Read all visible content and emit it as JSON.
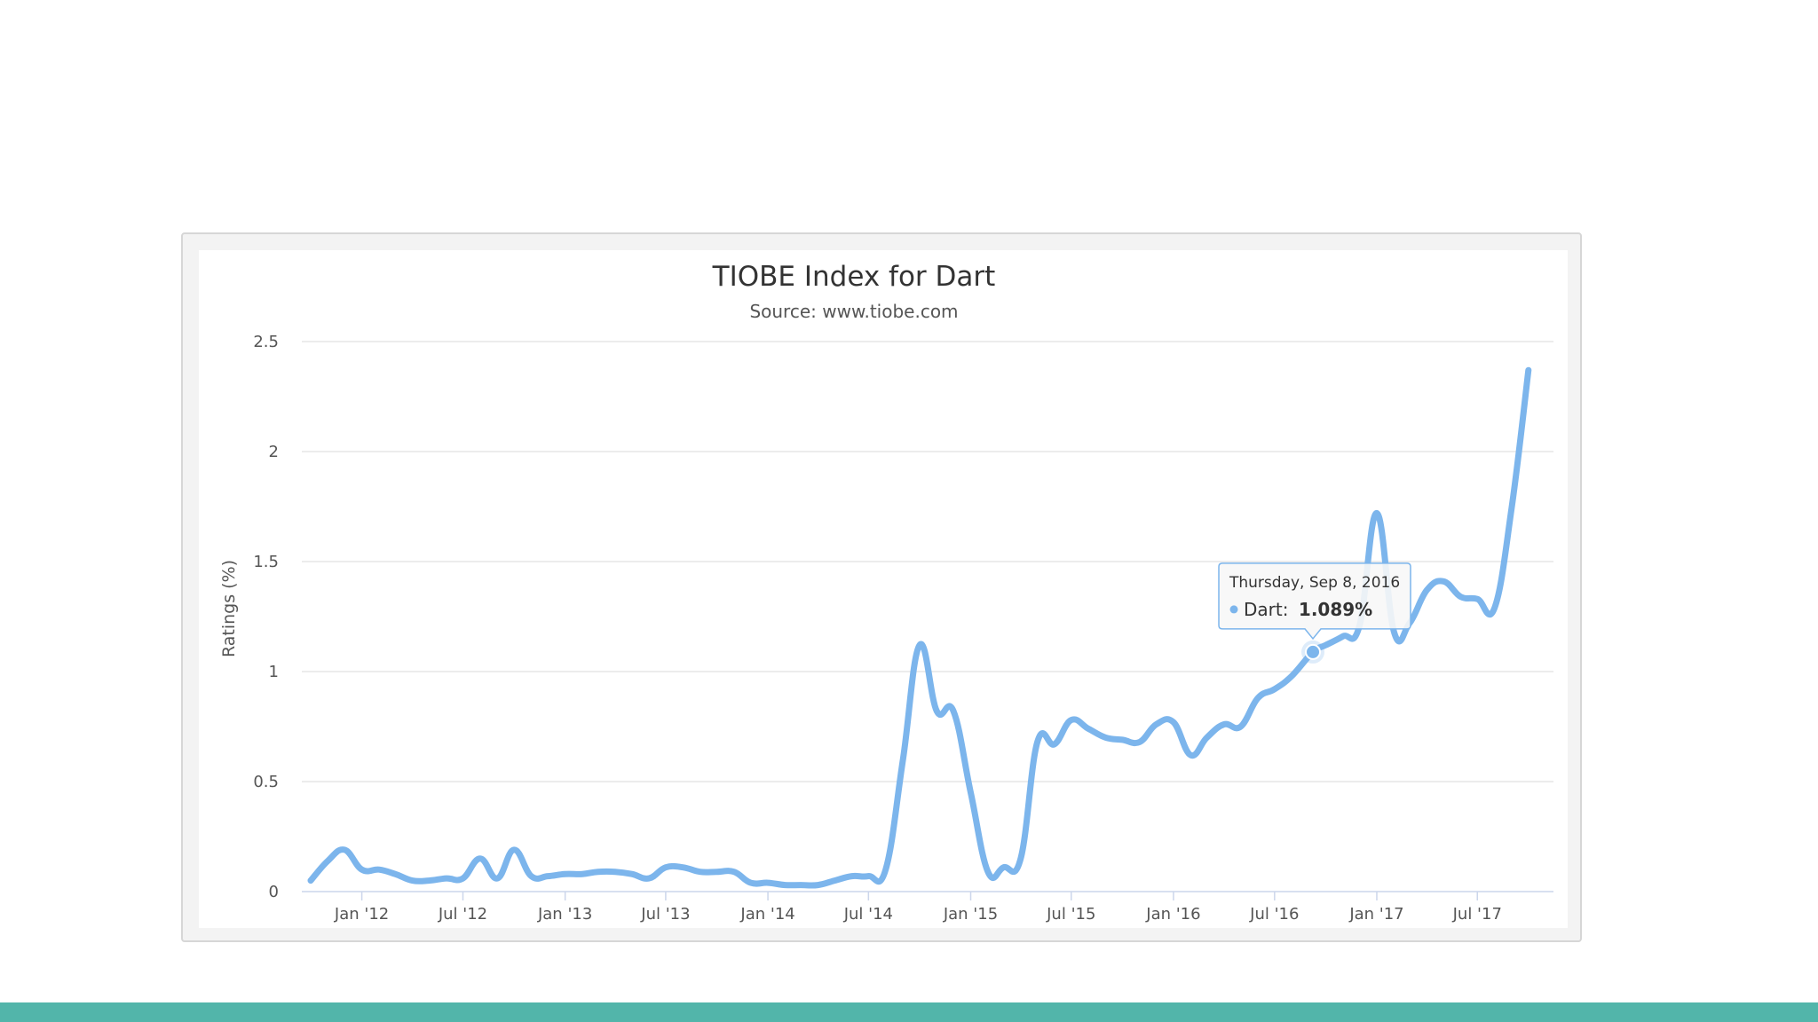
{
  "colors": {
    "series": "#7cb5ec",
    "bottom_bar": "#52b5aa",
    "gridline": "#e6e6e6",
    "axis_line": "#ccd6eb"
  },
  "chart_data": {
    "type": "line",
    "title": "TIOBE Index for Dart",
    "subtitle": "Source: www.tiobe.com",
    "ylabel": "Ratings (%)",
    "xlabel": "",
    "ylim": [
      0,
      2.5
    ],
    "yticks": [
      0,
      0.5,
      1,
      1.5,
      2,
      2.5
    ],
    "ytick_labels": [
      "0",
      "0.5",
      "1",
      "1.5",
      "2",
      "2.5"
    ],
    "xlim": [
      "2011-09-15",
      "2017-11-15"
    ],
    "xticks": [
      {
        "date": "2012-01-01",
        "label": "Jan '12"
      },
      {
        "date": "2012-07-01",
        "label": "Jul '12"
      },
      {
        "date": "2013-01-01",
        "label": "Jan '13"
      },
      {
        "date": "2013-07-01",
        "label": "Jul '13"
      },
      {
        "date": "2014-01-01",
        "label": "Jan '14"
      },
      {
        "date": "2014-07-01",
        "label": "Jul '14"
      },
      {
        "date": "2015-01-01",
        "label": "Jan '15"
      },
      {
        "date": "2015-07-01",
        "label": "Jul '15"
      },
      {
        "date": "2016-01-01",
        "label": "Jan '16"
      },
      {
        "date": "2016-07-01",
        "label": "Jul '16"
      },
      {
        "date": "2017-01-01",
        "label": "Jan '17"
      },
      {
        "date": "2017-07-01",
        "label": "Jul '17"
      }
    ],
    "grid": true,
    "legend": "none",
    "series": [
      {
        "name": "Dart",
        "points": [
          [
            "2011-10-01",
            0.05
          ],
          [
            "2011-11-01",
            0.14
          ],
          [
            "2011-12-01",
            0.19
          ],
          [
            "2012-01-01",
            0.1
          ],
          [
            "2012-02-01",
            0.1
          ],
          [
            "2012-03-01",
            0.08
          ],
          [
            "2012-04-01",
            0.05
          ],
          [
            "2012-05-01",
            0.05
          ],
          [
            "2012-06-01",
            0.06
          ],
          [
            "2012-07-01",
            0.06
          ],
          [
            "2012-08-01",
            0.15
          ],
          [
            "2012-09-01",
            0.06
          ],
          [
            "2012-10-01",
            0.19
          ],
          [
            "2012-11-01",
            0.07
          ],
          [
            "2012-12-01",
            0.07
          ],
          [
            "2013-01-01",
            0.08
          ],
          [
            "2013-02-01",
            0.08
          ],
          [
            "2013-03-01",
            0.09
          ],
          [
            "2013-04-01",
            0.09
          ],
          [
            "2013-05-01",
            0.08
          ],
          [
            "2013-06-01",
            0.06
          ],
          [
            "2013-07-01",
            0.11
          ],
          [
            "2013-08-01",
            0.11
          ],
          [
            "2013-09-01",
            0.09
          ],
          [
            "2013-10-01",
            0.09
          ],
          [
            "2013-11-01",
            0.09
          ],
          [
            "2013-12-01",
            0.04
          ],
          [
            "2014-01-01",
            0.04
          ],
          [
            "2014-02-01",
            0.03
          ],
          [
            "2014-03-01",
            0.03
          ],
          [
            "2014-04-01",
            0.03
          ],
          [
            "2014-05-01",
            0.05
          ],
          [
            "2014-06-01",
            0.07
          ],
          [
            "2014-07-01",
            0.07
          ],
          [
            "2014-08-01",
            0.1
          ],
          [
            "2014-09-01",
            0.6
          ],
          [
            "2014-10-01",
            1.12
          ],
          [
            "2014-11-01",
            0.82
          ],
          [
            "2014-12-01",
            0.82
          ],
          [
            "2015-01-01",
            0.45
          ],
          [
            "2015-02-01",
            0.09
          ],
          [
            "2015-03-01",
            0.11
          ],
          [
            "2015-04-01",
            0.15
          ],
          [
            "2015-05-01",
            0.68
          ],
          [
            "2015-06-01",
            0.67
          ],
          [
            "2015-07-01",
            0.78
          ],
          [
            "2015-08-01",
            0.74
          ],
          [
            "2015-09-01",
            0.7
          ],
          [
            "2015-10-01",
            0.69
          ],
          [
            "2015-11-01",
            0.68
          ],
          [
            "2015-12-01",
            0.76
          ],
          [
            "2016-01-01",
            0.77
          ],
          [
            "2016-02-01",
            0.62
          ],
          [
            "2016-03-01",
            0.7
          ],
          [
            "2016-04-01",
            0.76
          ],
          [
            "2016-05-01",
            0.75
          ],
          [
            "2016-06-01",
            0.88
          ],
          [
            "2016-07-01",
            0.92
          ],
          [
            "2016-08-01",
            0.98
          ],
          [
            "2016-09-08",
            1.089
          ],
          [
            "2016-10-01",
            1.12
          ],
          [
            "2016-11-01",
            1.16
          ],
          [
            "2016-12-01",
            1.21
          ],
          [
            "2017-01-01",
            1.72
          ],
          [
            "2017-02-01",
            1.18
          ],
          [
            "2017-03-01",
            1.22
          ],
          [
            "2017-04-01",
            1.37
          ],
          [
            "2017-05-01",
            1.41
          ],
          [
            "2017-06-01",
            1.34
          ],
          [
            "2017-07-01",
            1.33
          ],
          [
            "2017-08-01",
            1.29
          ],
          [
            "2017-09-01",
            1.75
          ],
          [
            "2017-10-01",
            2.37
          ]
        ]
      }
    ],
    "tooltip": {
      "date_label": "Thursday, Sep 8, 2016",
      "series_label": "Dart:",
      "value_label": "1.089%",
      "date": "2016-09-08",
      "value": 1.089
    }
  }
}
